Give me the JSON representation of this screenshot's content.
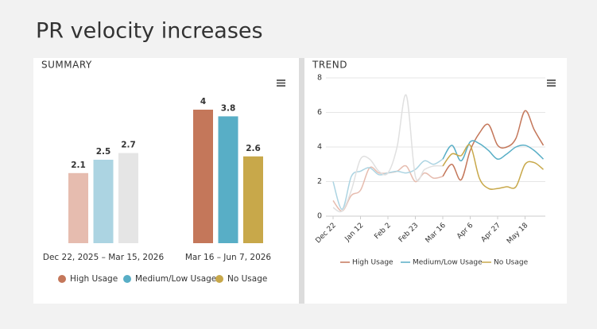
{
  "page_title": "PR velocity increases",
  "chart_data": [
    {
      "type": "bar",
      "title": "SUMMARY",
      "categories": [
        "Dec 22, 2025 – Mar 15, 2026",
        "Mar 16 – Jun 7, 2026"
      ],
      "series": [
        {
          "name": "High Usage",
          "color": "#c4775a",
          "point_colors": [
            "#e6bcaf",
            "#c4775a"
          ],
          "values": [
            2.1,
            4
          ]
        },
        {
          "name": "Medium/Low Usage",
          "color": "#58aec6",
          "point_colors": [
            "#acd4e2",
            "#58aec6"
          ],
          "values": [
            2.5,
            3.8
          ]
        },
        {
          "name": "No Usage",
          "color": "#c8a84a",
          "point_colors": [
            "#e5e5e5",
            "#c8a84a"
          ],
          "values": [
            2.7,
            2.6
          ]
        }
      ]
    },
    {
      "type": "line",
      "title": "TREND",
      "categories": [
        "Dec 22",
        null,
        null,
        "Jan 12",
        null,
        null,
        "Feb 2",
        null,
        null,
        "Feb 23",
        null,
        null,
        "Mar 16",
        null,
        null,
        "Apr 6",
        null,
        null,
        "Apr 27",
        null,
        null,
        "May 18",
        null,
        null
      ],
      "highlight_start": "Mar 16",
      "ylim": [
        0,
        8
      ],
      "yticks": [
        0,
        2,
        4,
        6,
        8
      ],
      "grid": true,
      "series": [
        {
          "name": "High Usage",
          "color": "#c4775a",
          "faded_color": "#e6bcaf",
          "values": [
            0.9,
            0.3,
            1.2,
            1.5,
            2.8,
            2.5,
            2.5,
            2.6,
            2.9,
            2.0,
            2.5,
            2.2,
            2.3,
            3.0,
            2.1,
            3.8,
            4.8,
            5.3,
            4.1,
            4.0,
            4.5,
            6.1,
            5.0,
            4.1
          ]
        },
        {
          "name": "Medium/Low Usage",
          "color": "#58aec6",
          "faded_color": "#acd4e2",
          "values": [
            2.0,
            0.4,
            2.3,
            2.6,
            2.8,
            2.4,
            2.5,
            2.6,
            2.5,
            2.7,
            3.2,
            3.0,
            3.3,
            4.1,
            3.2,
            4.3,
            4.2,
            3.8,
            3.3,
            3.6,
            4.0,
            4.1,
            3.8,
            3.3
          ]
        },
        {
          "name": "No Usage",
          "color": "#c8a84a",
          "faded_color": "#e0e0e0",
          "values": [
            0.5,
            0.3,
            1.5,
            3.3,
            3.3,
            2.6,
            2.5,
            4.0,
            7.0,
            2.3,
            2.7,
            2.9,
            2.9,
            3.6,
            3.5,
            4.1,
            2.2,
            1.6,
            1.6,
            1.7,
            1.7,
            3.0,
            3.1,
            2.7
          ]
        }
      ]
    }
  ]
}
